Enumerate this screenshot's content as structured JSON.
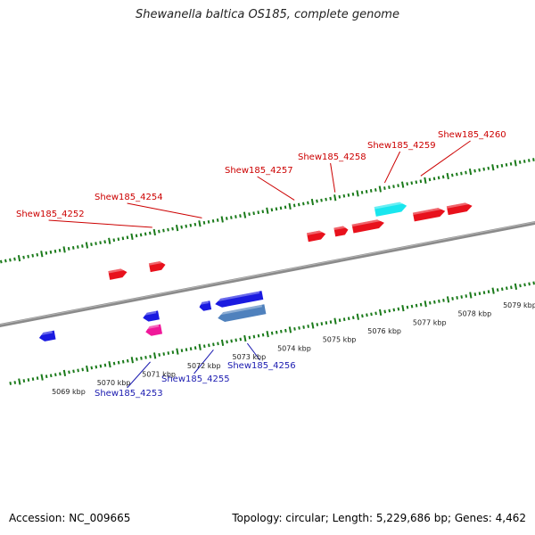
{
  "title": "Shewanella baltica OS185, complete genome",
  "footer": {
    "accession_label": "Accession: NC_009665",
    "topology": "Topology: circular;",
    "length": "Length: 5,229,686 bp;",
    "genes": "Genes: 4,462"
  },
  "colors": {
    "forward_cds": "#e8111c",
    "reverse_cds": "#1a1ae0",
    "cyan_feature": "#19e6ee",
    "steelblue_feature": "#4f81bd",
    "magenta_feature": "#f0189a",
    "tick_green": "#1a7a1a",
    "backbone": "#8a8a8a",
    "forward_label": "#cc0000",
    "reverse_label": "#1a1ab0"
  },
  "scale_ticks": [
    {
      "pos": 5069,
      "label": "5069 kbp"
    },
    {
      "pos": 5070,
      "label": "5070 kbp"
    },
    {
      "pos": 5071,
      "label": "5071 kbp"
    },
    {
      "pos": 5072,
      "label": "5072 kbp"
    },
    {
      "pos": 5073,
      "label": "5073 kbp"
    },
    {
      "pos": 5074,
      "label": "5074 kbp"
    },
    {
      "pos": 5075,
      "label": "5075 kbp"
    },
    {
      "pos": 5076,
      "label": "5076 kbp"
    },
    {
      "pos": 5077,
      "label": "5077 kbp"
    },
    {
      "pos": 5078,
      "label": "5078 kbp"
    },
    {
      "pos": 5079,
      "label": "5079 kbp"
    }
  ],
  "forward_genes": [
    {
      "start": 5070.35,
      "end": 5070.75,
      "color": "forward_cds",
      "label": "",
      "lane": 0
    },
    {
      "start": 5071.25,
      "end": 5071.6,
      "color": "forward_cds",
      "label": "Shew185_4252",
      "lane": 0
    },
    {
      "start": 5074.75,
      "end": 5075.15,
      "color": "forward_cds",
      "label": "Shew185_4254",
      "lane": 0
    },
    {
      "start": 5075.35,
      "end": 5075.65,
      "color": "forward_cds",
      "label": "Shew185_4257",
      "lane": 0
    },
    {
      "start": 5075.75,
      "end": 5076.45,
      "color": "forward_cds",
      "label": "Shew185_4258",
      "lane": 0
    },
    {
      "start": 5076.3,
      "end": 5077.0,
      "color": "cyan_feature",
      "label": "Shew185_4259",
      "lane": 1
    },
    {
      "start": 5077.1,
      "end": 5077.8,
      "color": "forward_cds",
      "label": "Shew185_4260",
      "lane": 0
    },
    {
      "start": 5077.85,
      "end": 5078.4,
      "color": "forward_cds",
      "label": "",
      "lane": 0
    }
  ],
  "reverse_genes": [
    {
      "start": 5068.6,
      "end": 5068.95,
      "color": "reverse_cds",
      "label": "",
      "lane": 0
    },
    {
      "start": 5070.9,
      "end": 5071.25,
      "color": "reverse_cds",
      "label": "Shew185_4253",
      "lane": 0
    },
    {
      "start": 5070.9,
      "end": 5071.25,
      "color": "magenta_feature",
      "label": "",
      "lane": 1
    },
    {
      "start": 5072.15,
      "end": 5072.4,
      "color": "reverse_cds",
      "label": "Shew185_4255",
      "lane": 0
    },
    {
      "start": 5072.5,
      "end": 5073.55,
      "color": "reverse_cds",
      "label": "Shew185_4256",
      "lane": 0
    },
    {
      "start": 5072.5,
      "end": 5073.55,
      "color": "steelblue_feature",
      "label": "",
      "lane": 1
    }
  ],
  "forward_labels": [
    {
      "text": "Shew185_4252",
      "anchor_kbp": 5071.45
    },
    {
      "text": "Shew185_4254",
      "anchor_kbp": 5072.55
    },
    {
      "text": "Shew185_4257",
      "anchor_kbp": 5074.6
    },
    {
      "text": "Shew185_4258",
      "anchor_kbp": 5075.5
    },
    {
      "text": "Shew185_4259",
      "anchor_kbp": 5076.6
    },
    {
      "text": "Shew185_4260",
      "anchor_kbp": 5077.4
    }
  ],
  "reverse_labels": [
    {
      "text": "Shew185_4253",
      "anchor_kbp": 5070.9
    },
    {
      "text": "Shew185_4255",
      "anchor_kbp": 5072.3
    },
    {
      "text": "Shew185_4256",
      "anchor_kbp": 5073.05
    }
  ]
}
